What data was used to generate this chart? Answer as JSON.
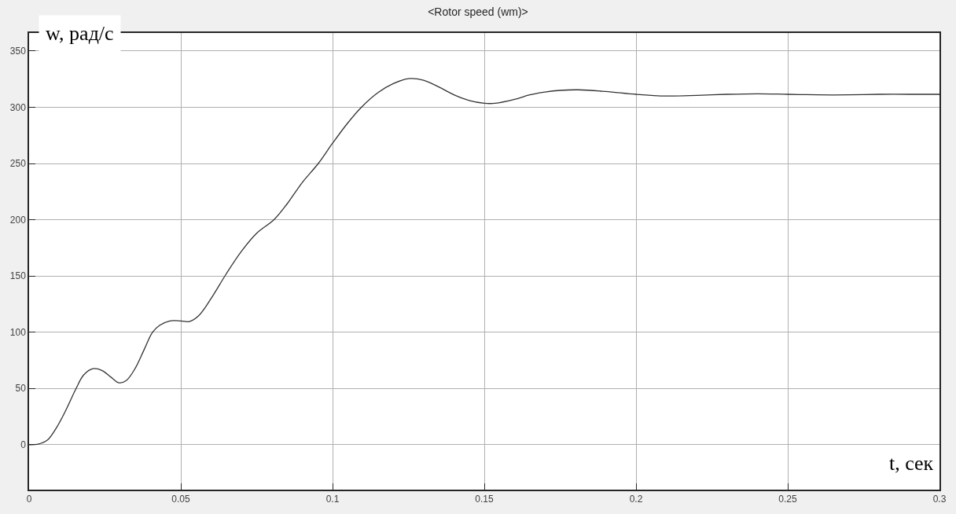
{
  "chart_data": {
    "type": "line",
    "title": "<Rotor speed (wm)>",
    "xlabel": "t, сек",
    "ylabel": "w, рад/с",
    "x": [
      0,
      0.003,
      0.006,
      0.009,
      0.012,
      0.0155,
      0.018,
      0.021,
      0.024,
      0.027,
      0.0296,
      0.032,
      0.035,
      0.038,
      0.0407,
      0.043,
      0.0464,
      0.05,
      0.0528,
      0.056,
      0.06,
      0.065,
      0.07,
      0.075,
      0.0807,
      0.085,
      0.09,
      0.0953,
      0.1,
      0.105,
      0.1095,
      0.115,
      0.12,
      0.1253,
      0.13,
      0.135,
      0.14,
      0.145,
      0.15,
      0.1536,
      0.16,
      0.165,
      0.17,
      0.175,
      0.181,
      0.19,
      0.2,
      0.21,
      0.22,
      0.23,
      0.24,
      0.25,
      0.26,
      0.27,
      0.28,
      0.29,
      0.3
    ],
    "series": [
      {
        "color": "#333333",
        "values": [
          0,
          0.5,
          4,
          15,
          30,
          50,
          62,
          67.5,
          66,
          60,
          55,
          57,
          68,
          85,
          100,
          106,
          110,
          110,
          109.5,
          115,
          130,
          152,
          172,
          188,
          200,
          214,
          233,
          250,
          268,
          286,
          300,
          313,
          321,
          325.5,
          324,
          318,
          311,
          306,
          303.5,
          303.5,
          307,
          311,
          313.5,
          315,
          315.5,
          314,
          311.5,
          310,
          310.5,
          311.5,
          312,
          311.5,
          311,
          311,
          311.5,
          311.5,
          311.5
        ]
      }
    ],
    "xlim": [
      0,
      0.3
    ],
    "ylim": [
      -40,
      366
    ],
    "xticks": [
      0,
      0.05,
      0.1,
      0.15,
      0.2,
      0.25,
      0.3
    ],
    "yticks": [
      0,
      50,
      100,
      150,
      200,
      250,
      300,
      350
    ],
    "grid": true,
    "legend": false,
    "marker": "none",
    "line_style": "solid"
  }
}
